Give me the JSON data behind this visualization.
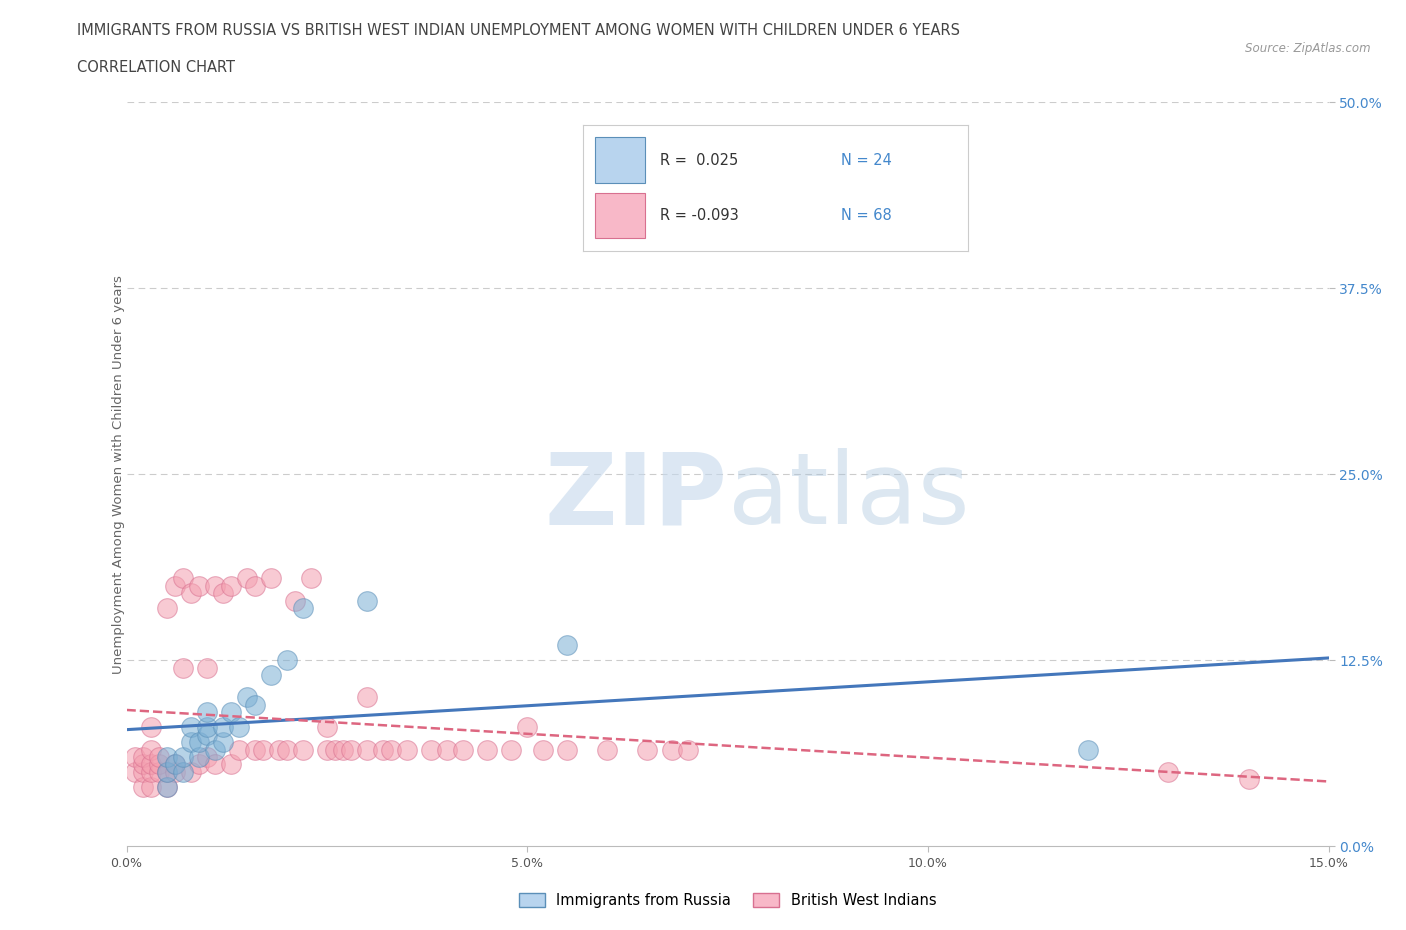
{
  "title_line1": "IMMIGRANTS FROM RUSSIA VS BRITISH WEST INDIAN UNEMPLOYMENT AMONG WOMEN WITH CHILDREN UNDER 6 YEARS",
  "title_line2": "CORRELATION CHART",
  "source_text": "Source: ZipAtlas.com",
  "ylabel": "Unemployment Among Women with Children Under 6 years",
  "xlim": [
    0.0,
    0.15
  ],
  "ylim": [
    0.0,
    0.5
  ],
  "blue_color": "#7BAFD4",
  "pink_color": "#F4A0B0",
  "blue_edge": "#5B8FB8",
  "pink_edge": "#D87090",
  "line_blue": "#4477BB",
  "line_pink": "#DD6680",
  "title_color": "#444444",
  "right_tick_color": "#4488CC",
  "grid_color": "#CCCCCC",
  "background_color": "#FFFFFF",
  "russia_x": [
    0.005,
    0.005,
    0.005,
    0.006,
    0.007,
    0.007,
    0.008,
    0.008,
    0.009,
    0.009,
    0.01,
    0.01,
    0.01,
    0.011,
    0.012,
    0.012,
    0.013,
    0.014,
    0.015,
    0.016,
    0.018,
    0.02,
    0.022,
    0.03,
    0.055,
    0.12
  ],
  "russia_y": [
    0.04,
    0.05,
    0.06,
    0.055,
    0.05,
    0.06,
    0.07,
    0.08,
    0.06,
    0.07,
    0.075,
    0.08,
    0.09,
    0.065,
    0.07,
    0.08,
    0.09,
    0.08,
    0.1,
    0.095,
    0.115,
    0.125,
    0.16,
    0.165,
    0.135,
    0.065
  ],
  "bwi_x": [
    0.001,
    0.001,
    0.002,
    0.002,
    0.002,
    0.002,
    0.003,
    0.003,
    0.003,
    0.003,
    0.003,
    0.004,
    0.004,
    0.004,
    0.005,
    0.005,
    0.005,
    0.006,
    0.006,
    0.006,
    0.007,
    0.007,
    0.008,
    0.008,
    0.009,
    0.009,
    0.01,
    0.01,
    0.011,
    0.011,
    0.012,
    0.013,
    0.013,
    0.014,
    0.015,
    0.016,
    0.016,
    0.017,
    0.018,
    0.019,
    0.02,
    0.021,
    0.022,
    0.023,
    0.025,
    0.025,
    0.026,
    0.027,
    0.028,
    0.03,
    0.03,
    0.032,
    0.033,
    0.035,
    0.038,
    0.04,
    0.042,
    0.045,
    0.048,
    0.05,
    0.052,
    0.055,
    0.06,
    0.065,
    0.068,
    0.07,
    0.13,
    0.14
  ],
  "bwi_y": [
    0.05,
    0.06,
    0.04,
    0.05,
    0.055,
    0.06,
    0.04,
    0.05,
    0.055,
    0.065,
    0.08,
    0.05,
    0.055,
    0.06,
    0.04,
    0.05,
    0.16,
    0.05,
    0.055,
    0.175,
    0.12,
    0.18,
    0.05,
    0.17,
    0.055,
    0.175,
    0.06,
    0.12,
    0.055,
    0.175,
    0.17,
    0.055,
    0.175,
    0.065,
    0.18,
    0.065,
    0.175,
    0.065,
    0.18,
    0.065,
    0.065,
    0.165,
    0.065,
    0.18,
    0.065,
    0.08,
    0.065,
    0.065,
    0.065,
    0.065,
    0.1,
    0.065,
    0.065,
    0.065,
    0.065,
    0.065,
    0.065,
    0.065,
    0.065,
    0.08,
    0.065,
    0.065,
    0.065,
    0.065,
    0.065,
    0.065,
    0.05,
    0.045
  ],
  "blue_fill_legend": "#B8D4EE",
  "pink_fill_legend": "#F8B8C8",
  "watermark_zip_color": "#C8D8E8",
  "watermark_atlas_color": "#B8CCE0"
}
